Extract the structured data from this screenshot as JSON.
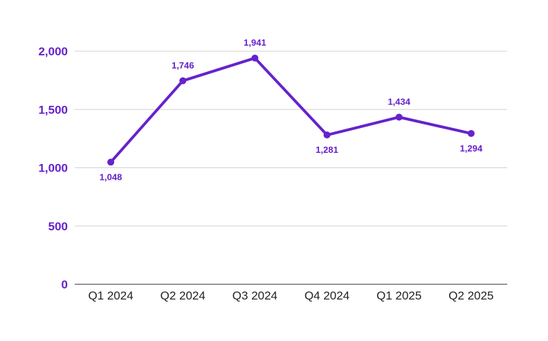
{
  "chart_data": {
    "type": "line",
    "title": "",
    "xlabel": "",
    "ylabel": "",
    "categories": [
      "Q1 2024",
      "Q2 2024",
      "Q3 2024",
      "Q4 2024",
      "Q1 2025",
      "Q2 2025"
    ],
    "series": [
      {
        "values": [
          1048,
          1746,
          1941,
          1281,
          1434,
          1294
        ],
        "data_labels": [
          "1,048",
          "1,746",
          "1,941",
          "1,281",
          "1,434",
          "1,294"
        ],
        "label_placement": [
          "below",
          "above",
          "above",
          "below",
          "above",
          "below"
        ]
      }
    ],
    "ylim": [
      0,
      2000
    ],
    "yticks": [
      0,
      500,
      1000,
      1500,
      2000
    ],
    "ytick_labels": [
      "0",
      "500",
      "1,000",
      "1,500",
      "2,000"
    ],
    "grid": true,
    "legend": "none"
  },
  "colors": {
    "series": "#6622cc",
    "axis_labels": "#6622cc",
    "data_labels": "#6622cc",
    "gridline": "#d0d0d0",
    "x_labels": "#222222"
  }
}
